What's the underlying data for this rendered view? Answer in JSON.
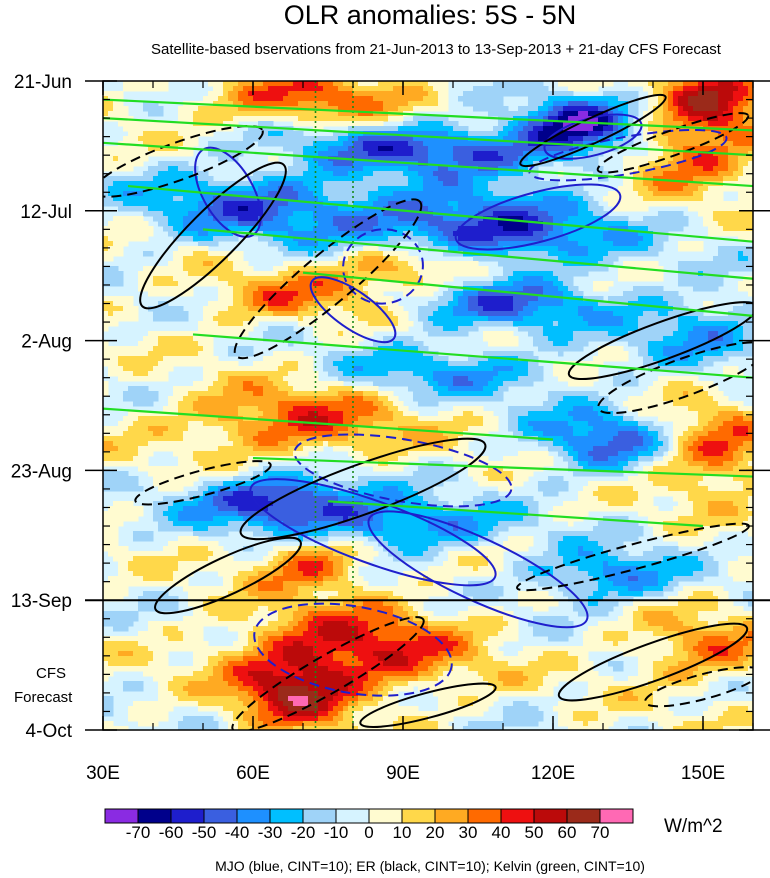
{
  "chart_data": {
    "type": "heatmap",
    "title": "OLR anomalies: 5S - 5N",
    "subtitle": "Satellite-based bservations from 21-Jun-2013 to 13-Sep-2013 + 21-day CFS Forecast",
    "xlabel": "",
    "ylabel": "",
    "x_axis": {
      "range": [
        30,
        160
      ],
      "ticks": [
        {
          "value": 30,
          "label": "30E"
        },
        {
          "value": 60,
          "label": "60E"
        },
        {
          "value": 90,
          "label": "90E"
        },
        {
          "value": 120,
          "label": "120E"
        },
        {
          "value": 150,
          "label": "150E"
        }
      ],
      "minor_step": 10
    },
    "y_axis": {
      "range_days": [
        0,
        105
      ],
      "direction": "time increases downward",
      "ticks": [
        {
          "day": 0,
          "label": "21-Jun"
        },
        {
          "day": 21,
          "label": "12-Jul"
        },
        {
          "day": 42,
          "label": "2-Aug"
        },
        {
          "day": 63,
          "label": "23-Aug"
        },
        {
          "day": 84,
          "label": "13-Sep"
        },
        {
          "day": 105,
          "label": "4-Oct"
        }
      ],
      "minor_step_days": 3,
      "forecast_label": [
        "CFS",
        "Forecast"
      ]
    },
    "forecast_start_day": 84,
    "reference_longitudes": [
      72.5,
      80
    ],
    "colorbar": {
      "units": "W/m^2",
      "levels": [
        -70,
        -60,
        -50,
        -40,
        -30,
        -20,
        -10,
        0,
        10,
        20,
        30,
        40,
        50,
        60,
        70
      ],
      "colors": [
        "#8a2be2",
        "#00008b",
        "#1e1ecc",
        "#3a5fe0",
        "#1e90ff",
        "#00bfff",
        "#9fd3f8",
        "#d6f3ff",
        "#fffbd0",
        "#ffd84a",
        "#ffaa22",
        "#ff6a00",
        "#ee1010",
        "#bb0a0a",
        "#9b2a1a",
        "#ff69b4"
      ]
    },
    "anomaly_features": [
      {
        "lon": 70,
        "day": 3,
        "value": 40,
        "dlon": 14,
        "dday": 3,
        "tilt": 0
      },
      {
        "lon": 152,
        "day": 3,
        "value": 50,
        "dlon": 7,
        "dday": 4,
        "tilt": 0
      },
      {
        "lon": 125,
        "day": 7,
        "value": -60,
        "dlon": 8,
        "dday": 3,
        "tilt": 0
      },
      {
        "lon": 148,
        "day": 12,
        "value": 40,
        "dlon": 9,
        "dday": 4,
        "tilt": 0
      },
      {
        "lon": 98,
        "day": 11,
        "value": -50,
        "dlon": 20,
        "dday": 3,
        "tilt": -0.1
      },
      {
        "lon": 60,
        "day": 20,
        "value": -40,
        "dlon": 16,
        "dday": 4,
        "tilt": 0
      },
      {
        "lon": 105,
        "day": 24,
        "value": -60,
        "dlon": 18,
        "dday": 4,
        "tilt": -0.1
      },
      {
        "lon": 92,
        "day": 30,
        "value": 40,
        "dlon": 10,
        "dday": 3,
        "tilt": 0
      },
      {
        "lon": 68,
        "day": 35,
        "value": 30,
        "dlon": 12,
        "dday": 3,
        "tilt": 0
      },
      {
        "lon": 110,
        "day": 36,
        "value": -40,
        "dlon": 16,
        "dday": 3,
        "tilt": 0
      },
      {
        "lon": 150,
        "day": 40,
        "value": -30,
        "dlon": 10,
        "dday": 4,
        "tilt": 0
      },
      {
        "lon": 68,
        "day": 55,
        "value": 40,
        "dlon": 16,
        "dday": 4,
        "tilt": 0
      },
      {
        "lon": 100,
        "day": 47,
        "value": -30,
        "dlon": 16,
        "dday": 3,
        "tilt": 0
      },
      {
        "lon": 130,
        "day": 58,
        "value": -40,
        "dlon": 10,
        "dday": 4,
        "tilt": 0
      },
      {
        "lon": 152,
        "day": 60,
        "value": 40,
        "dlon": 8,
        "dday": 5,
        "tilt": 0
      },
      {
        "lon": 65,
        "day": 68,
        "value": -60,
        "dlon": 12,
        "dday": 3,
        "tilt": 0
      },
      {
        "lon": 90,
        "day": 72,
        "value": -40,
        "dlon": 14,
        "dday": 3,
        "tilt": 0
      },
      {
        "lon": 72,
        "day": 78,
        "value": 40,
        "dlon": 8,
        "dday": 3,
        "tilt": 0
      },
      {
        "lon": 130,
        "day": 80,
        "value": -40,
        "dlon": 10,
        "dday": 3,
        "tilt": 0
      },
      {
        "lon": 80,
        "day": 92,
        "value": 50,
        "dlon": 16,
        "dday": 5,
        "tilt": 0
      },
      {
        "lon": 68,
        "day": 99,
        "value": 50,
        "dlon": 8,
        "dday": 4,
        "tilt": 0
      },
      {
        "lon": 150,
        "day": 92,
        "value": 30,
        "dlon": 10,
        "dday": 4,
        "tilt": 0
      }
    ],
    "contours": {
      "mjo": {
        "color": "#1f1fcc",
        "lines": [
          {
            "type": "ellipse",
            "lon": 55,
            "day": 18,
            "rlon": 5,
            "rday": 8,
            "rot": -30,
            "dashed": false
          },
          {
            "type": "ellipse",
            "lon": 128,
            "day": 9,
            "rlon": 10,
            "rday": 3,
            "rot": -15,
            "dashed": false
          },
          {
            "type": "ellipse",
            "lon": 117,
            "day": 22,
            "rlon": 17,
            "rday": 4,
            "rot": -15,
            "dashed": false
          },
          {
            "type": "ellipse",
            "lon": 80,
            "day": 37,
            "rlon": 10,
            "rday": 3,
            "rot": 35,
            "dashed": false
          },
          {
            "type": "ellipse",
            "lon": 86,
            "day": 30,
            "rlon": 8,
            "rday": 6,
            "rot": -10,
            "dashed": true
          },
          {
            "type": "ellipse",
            "lon": 90,
            "day": 63,
            "rlon": 22,
            "rday": 5,
            "rot": 10,
            "dashed": true
          },
          {
            "type": "ellipse",
            "lon": 84,
            "day": 73,
            "rlon": 26,
            "rday": 5,
            "rot": 20,
            "dashed": false
          },
          {
            "type": "ellipse",
            "lon": 105,
            "day": 79,
            "rlon": 24,
            "rday": 5,
            "rot": 25,
            "dashed": false
          },
          {
            "type": "ellipse",
            "lon": 80,
            "day": 92,
            "rlon": 20,
            "rday": 7,
            "rot": 10,
            "dashed": true
          },
          {
            "type": "ellipse",
            "lon": 135,
            "day": 12,
            "rlon": 20,
            "rday": 3,
            "rot": -10,
            "dashed": true
          }
        ]
      },
      "er": {
        "color": "#000000",
        "lines": [
          {
            "type": "ellipse",
            "lon": 52,
            "day": 25,
            "rlon": 20,
            "rday": 4,
            "rot": -45,
            "dashed": false
          },
          {
            "type": "ellipse",
            "lon": 45,
            "day": 13,
            "rlon": 18,
            "rday": 3,
            "rot": -20,
            "dashed": true
          },
          {
            "type": "ellipse",
            "lon": 128,
            "day": 8,
            "rlon": 16,
            "rday": 2,
            "rot": -25,
            "dashed": false
          },
          {
            "type": "ellipse",
            "lon": 144,
            "day": 10,
            "rlon": 16,
            "rday": 2,
            "rot": -20,
            "dashed": true
          },
          {
            "type": "ellipse",
            "lon": 75,
            "day": 32,
            "rlon": 24,
            "rday": 4,
            "rot": -40,
            "dashed": true
          },
          {
            "type": "ellipse",
            "lon": 142,
            "day": 42,
            "rlon": 20,
            "rday": 3,
            "rot": -20,
            "dashed": false
          },
          {
            "type": "ellipse",
            "lon": 146,
            "day": 48,
            "rlon": 18,
            "rday": 3,
            "rot": -20,
            "dashed": true
          },
          {
            "type": "ellipse",
            "lon": 82,
            "day": 66,
            "rlon": 26,
            "rday": 4,
            "rot": -20,
            "dashed": false
          },
          {
            "type": "ellipse",
            "lon": 55,
            "day": 80,
            "rlon": 16,
            "rday": 3,
            "rot": -25,
            "dashed": false
          },
          {
            "type": "ellipse",
            "lon": 136,
            "day": 77,
            "rlon": 24,
            "rday": 2,
            "rot": -15,
            "dashed": true
          },
          {
            "type": "ellipse",
            "lon": 140,
            "day": 94,
            "rlon": 20,
            "rday": 3,
            "rot": -20,
            "dashed": false
          },
          {
            "type": "ellipse",
            "lon": 95,
            "day": 101,
            "rlon": 14,
            "rday": 2,
            "rot": -15,
            "dashed": false
          },
          {
            "type": "ellipse",
            "lon": 75,
            "day": 96,
            "rlon": 22,
            "rday": 3,
            "rot": -30,
            "dashed": true
          },
          {
            "type": "ellipse",
            "lon": 150,
            "day": 98,
            "rlon": 12,
            "rday": 2,
            "rot": -15,
            "dashed": true
          },
          {
            "type": "ellipse",
            "lon": 50,
            "day": 65,
            "rlon": 14,
            "rday": 2,
            "rot": -15,
            "dashed": true
          }
        ]
      },
      "kelvin": {
        "color": "#22dd22",
        "lines": [
          {
            "type": "line",
            "lon1": 30,
            "day1": 6,
            "lon2": 160,
            "day2": 12
          },
          {
            "type": "line",
            "lon1": 30,
            "day1": 3,
            "lon2": 160,
            "day2": 8
          },
          {
            "type": "line",
            "lon1": 35,
            "day1": 17,
            "lon2": 160,
            "day2": 26
          },
          {
            "type": "line",
            "lon1": 50,
            "day1": 24,
            "lon2": 160,
            "day2": 32
          },
          {
            "type": "line",
            "lon1": 70,
            "day1": 31,
            "lon2": 160,
            "day2": 38
          },
          {
            "type": "line",
            "lon1": 48,
            "day1": 41,
            "lon2": 160,
            "day2": 48
          },
          {
            "type": "line",
            "lon1": 30,
            "day1": 53,
            "lon2": 120,
            "day2": 58
          },
          {
            "type": "line",
            "lon1": 60,
            "day1": 61,
            "lon2": 160,
            "day2": 64
          },
          {
            "type": "line",
            "lon1": 75,
            "day1": 68,
            "lon2": 150,
            "day2": 72
          },
          {
            "type": "line",
            "lon1": 30,
            "day1": 10,
            "lon2": 160,
            "day2": 17
          }
        ]
      }
    }
  },
  "figure": {
    "title": "OLR anomalies: 5S - 5N",
    "subtitle": "Satellite-based bservations from 21-Jun-2013 to 13-Sep-2013 + 21-day CFS Forecast",
    "units_label": "W/m^2",
    "legend_text": "MJO (blue, CINT=10); ER (black, CINT=10); Kelvin (green, CINT=10)",
    "forecast_label_1": "CFS",
    "forecast_label_2": "Forecast"
  }
}
